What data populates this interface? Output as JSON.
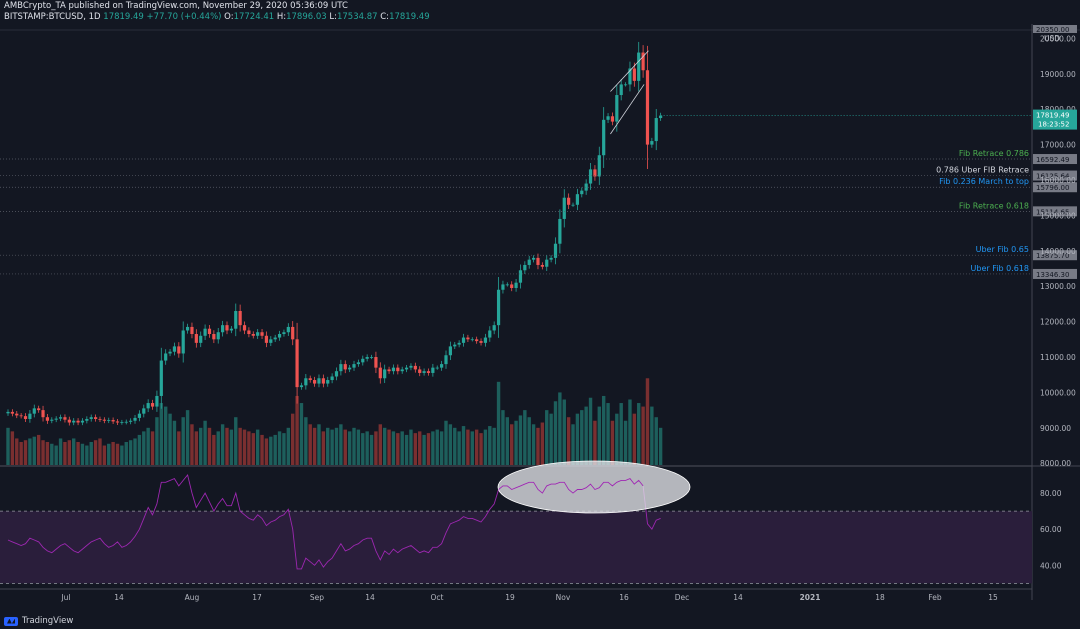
{
  "header": {
    "line1": "AMBCrypto_TA published on TradingView.com, November 29, 2020 05:36:09 UTC",
    "symbol": "BITSTAMP:BTCUSD, 1D",
    "last": "17819.49",
    "change": "+77.70 (+0.44%)",
    "o_label": "O:",
    "o": "17724.41",
    "h_label": "H:",
    "h": "17896.03",
    "l_label": "L:",
    "l": "17534.87",
    "c_label": "C:",
    "c": "17819.49"
  },
  "footer": {
    "brand": "TradingView"
  },
  "colors": {
    "bg": "#131722",
    "up": "#26a69a",
    "down": "#ef5350",
    "fib_green": "#4caf50",
    "fib_blue": "#2196f3",
    "rsi": "#9c27b0"
  },
  "chart_data": {
    "type": "candlestick",
    "price_axis": {
      "currency": "USD",
      "ticks": [
        "20000.00",
        "19000.00",
        "18000.00",
        "17000.00",
        "16000.00",
        "15000.00",
        "14000.00",
        "13000.00",
        "12000.00",
        "11000.00",
        "10000.00",
        "9000.00",
        "8000.00"
      ],
      "range": [
        7950,
        20350
      ]
    },
    "time_axis": [
      "Jul",
      "14",
      "Aug",
      "17",
      "Sep",
      "14",
      "Oct",
      "19",
      "Nov",
      "16",
      "Dec",
      "14",
      "2021",
      "18",
      "Feb",
      "15"
    ],
    "levels": [
      {
        "label": "Fib Retrace 0.786",
        "price": 16592.49,
        "badge": "16592.49",
        "color": "#4caf50"
      },
      {
        "label": "0.786 Uber FIB Retrace",
        "price": 16125.64,
        "badge": "16125.64",
        "color": "#d1d4dc"
      },
      {
        "label": "Fib 0.236 March to top",
        "price": 15796.0,
        "badge": "15796.00",
        "color": "#2196f3"
      },
      {
        "label": "Fib Retrace 0.618",
        "price": 15114.65,
        "badge": "15114.65",
        "color": "#4caf50"
      },
      {
        "label": "Uber Fib 0.65",
        "price": 13875.7,
        "badge": "13875.70",
        "color": "#2196f3"
      },
      {
        "label": "Uber Fib 0.618",
        "price": 13346.3,
        "badge": "13346.30",
        "color": "#2196f3"
      }
    ],
    "last_price": {
      "value": "17819.49",
      "countdown": "18:23:52"
    },
    "top_badge": "20350.00",
    "closes": [
      9450,
      9400,
      9350,
      9330,
      9250,
      9400,
      9550,
      9500,
      9300,
      9200,
      9230,
      9260,
      9300,
      9230,
      9150,
      9200,
      9150,
      9200,
      9250,
      9300,
      9250,
      9230,
      9200,
      9220,
      9180,
      9150,
      9160,
      9170,
      9200,
      9280,
      9400,
      9550,
      9700,
      9600,
      9900,
      10900,
      11100,
      11150,
      11300,
      11100,
      11750,
      11850,
      11650,
      11400,
      11600,
      11800,
      11650,
      11500,
      11700,
      11900,
      11750,
      11800,
      12300,
      11900,
      11750,
      11650,
      11600,
      11700,
      11600,
      11400,
      11500,
      11550,
      11650,
      11700,
      11850,
      11500,
      10150,
      10200,
      10400,
      10350,
      10250,
      10400,
      10250,
      10350,
      10450,
      10600,
      10800,
      10650,
      10700,
      10800,
      10850,
      10950,
      11000,
      11000,
      10700,
      10400,
      10650,
      10600,
      10700,
      10600,
      10650,
      10700,
      10750,
      10650,
      10550,
      10600,
      10550,
      10700,
      10700,
      10800,
      11050,
      11300,
      11350,
      11400,
      11550,
      11500,
      11500,
      11450,
      11400,
      11550,
      11750,
      11900,
      12900,
      13050,
      13050,
      12950,
      13100,
      13450,
      13600,
      13750,
      13800,
      13600,
      13550,
      13750,
      13800,
      14200,
      14900,
      15500,
      15300,
      15300,
      15600,
      15700,
      15900,
      16300,
      16100,
      16700,
      17700,
      17800,
      17650,
      18400,
      18700,
      18700,
      19150,
      18800,
      19600,
      19100,
      17000,
      17100,
      17750,
      17819
    ],
    "volumes": [
      9000,
      8900,
      8700,
      8600,
      8650,
      8700,
      8750,
      8800,
      8650,
      8600,
      8550,
      8500,
      8700,
      8600,
      8650,
      8700,
      8600,
      8550,
      8500,
      8600,
      8650,
      8700,
      8500,
      8550,
      8600,
      8550,
      8500,
      8600,
      8650,
      8700,
      8800,
      8900,
      9000,
      8900,
      9300,
      9700,
      9600,
      9400,
      9200,
      8900,
      9300,
      9500,
      9100,
      8900,
      9000,
      9200,
      9000,
      8800,
      8900,
      9100,
      9000,
      8950,
      9300,
      9000,
      8950,
      8900,
      8850,
      8950,
      8800,
      8700,
      8750,
      8800,
      8900,
      8850,
      9000,
      9400,
      9900,
      9700,
      9300,
      9100,
      9000,
      9100,
      8900,
      9000,
      8950,
      9000,
      9100,
      8950,
      8900,
      9000,
      8950,
      8850,
      8900,
      8800,
      8900,
      9100,
      9000,
      8950,
      8900,
      8850,
      8900,
      8800,
      8950,
      8850,
      8900,
      8800,
      8850,
      8900,
      8950,
      8900,
      9200,
      9100,
      9000,
      8900,
      9050,
      8950,
      8900,
      8950,
      8850,
      8950,
      9050,
      9000,
      10300,
      9500,
      9300,
      9100,
      9200,
      9350,
      9500,
      9300,
      9100,
      9000,
      9150,
      9500,
      9400,
      9750,
      10000,
      9800,
      9300,
      9100,
      9400,
      9500,
      9600,
      9850,
      9200,
      9600,
      9900,
      9700,
      9200,
      9400,
      9700,
      9200,
      9800,
      9400,
      9700,
      9600,
      10400,
      9600,
      9300,
      9000
    ],
    "rsi": {
      "axis_ticks": [
        "80.00",
        "60.00",
        "40.00"
      ],
      "range": [
        28,
        95
      ],
      "overbought": 70,
      "oversold": 30,
      "values": [
        54,
        53,
        52,
        51,
        52,
        55,
        54,
        53,
        50,
        48,
        47,
        49,
        51,
        52,
        50,
        48,
        47,
        49,
        51,
        53,
        54,
        55,
        52,
        50,
        51,
        53,
        50,
        51,
        53,
        56,
        60,
        66,
        72,
        68,
        74,
        86,
        86,
        87,
        88,
        84,
        87,
        90,
        80,
        72,
        76,
        80,
        75,
        70,
        74,
        77,
        73,
        73,
        80,
        70,
        68,
        66,
        65,
        68,
        66,
        62,
        64,
        65,
        67,
        68,
        71,
        60,
        38,
        38,
        44,
        42,
        40,
        43,
        39,
        42,
        44,
        48,
        52,
        48,
        49,
        51,
        52,
        54,
        55,
        55,
        48,
        43,
        48,
        46,
        49,
        47,
        49,
        50,
        51,
        49,
        47,
        48,
        47,
        50,
        50,
        52,
        58,
        63,
        64,
        65,
        67,
        66,
        66,
        65,
        64,
        67,
        71,
        74,
        82,
        84,
        84,
        82,
        83,
        84,
        85,
        86,
        86,
        82,
        80,
        84,
        85,
        85,
        86,
        86,
        82,
        80,
        82,
        82,
        83,
        85,
        82,
        83,
        86,
        86,
        84,
        86,
        87,
        87,
        88,
        85,
        87,
        84,
        63,
        60,
        65,
        66
      ]
    }
  }
}
